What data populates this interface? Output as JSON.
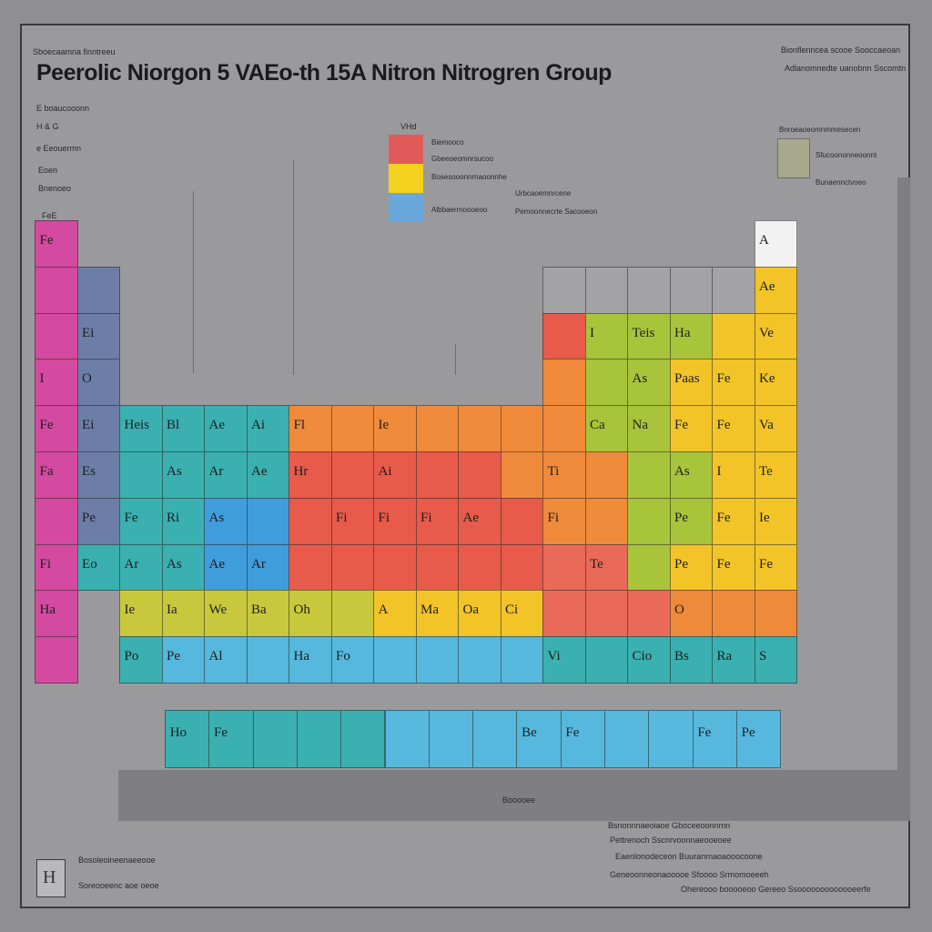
{
  "title": "Peerolic Niorgon 5 VAEo-th 15A Nitron Nitrogren Group",
  "subtitle": "Sboecaamna finntreeu",
  "top_right": [
    "Bionflenncea scooe Sooccaeoan",
    "Adlanomnedte uanobnn Sscomtn"
  ],
  "left_notes": [
    "E boaucooonn",
    "H &  G",
    "e Eeouermn",
    "Eoen",
    "Bnenoeo",
    "FeE"
  ],
  "legend": {
    "heading": "VHd",
    "items": [
      {
        "label": "Biemooco",
        "color": "#e05a5a"
      },
      {
        "label": "Gbeeoeomnrsucoo",
        "color": "#f2d21e"
      },
      {
        "label": "Bosesooonnrnaoonnhe",
        "color": "#6aa8dc"
      },
      {
        "label": "Albbaerrnoooeoo",
        "color": "#6aa8dc"
      }
    ],
    "extra": [
      "Urbcaoemnrcene",
      "Pemoonnecrte Sacooeon"
    ]
  },
  "right_legend": [
    "Bnroeaoeomnmmesecen",
    "Sfucoononneoonnt",
    "Bunaennctvoeo"
  ],
  "bottom_right_notes": [
    "Bsnonnnaeoiaoe  Gboceeoonnmn",
    "Pettrenoch  Sscnrvoonnaeooeoee",
    "Eaenlonodeceon  Buuranrnaoaooocoone",
    "Geneoonneonaooooe Sfoooo Srmomoeeeh",
    "Ohereooo booooeoo  Gereeo Ssooooooooooooeerfe"
  ],
  "footer": {
    "line1": "Bosoleoineenaeeooe",
    "line2": "Soreooeenc aoe oeoe"
  },
  "page_stamp": "Booooee",
  "colors": {
    "magenta": "#d44aa0",
    "slate": "#6c7ea8",
    "teal": "#3ab0b0",
    "blue": "#3f9ddc",
    "orange": "#ef8a3a",
    "red": "#e85a4a",
    "salmon": "#e96a58",
    "green": "#a8c43a",
    "yellow": "#f2c428",
    "lime": "#c9c83c",
    "cyan": "#55b8dc",
    "white": "#f2f2f2",
    "gray": "#a3a3a6"
  },
  "cells": [
    {
      "r": 0,
      "c": 0,
      "sym": "Fe",
      "color": "magenta"
    },
    {
      "r": 0,
      "c": 17,
      "sym": "A",
      "color": "white"
    },
    {
      "r": 1,
      "c": 0,
      "sym": "",
      "color": "magenta"
    },
    {
      "r": 1,
      "c": 1,
      "sym": "",
      "color": "slate"
    },
    {
      "r": 1,
      "c": 12,
      "sym": "",
      "color": "gray"
    },
    {
      "r": 1,
      "c": 13,
      "sym": "",
      "color": "gray"
    },
    {
      "r": 1,
      "c": 14,
      "sym": "",
      "color": "gray"
    },
    {
      "r": 1,
      "c": 15,
      "sym": "",
      "color": "gray"
    },
    {
      "r": 1,
      "c": 16,
      "sym": "",
      "color": "gray"
    },
    {
      "r": 1,
      "c": 17,
      "sym": "Ae",
      "color": "yellow"
    },
    {
      "r": 2,
      "c": 0,
      "sym": "",
      "color": "magenta"
    },
    {
      "r": 2,
      "c": 1,
      "sym": "Ei",
      "color": "slate"
    },
    {
      "r": 2,
      "c": 12,
      "sym": "",
      "color": "red"
    },
    {
      "r": 2,
      "c": 13,
      "sym": "I",
      "color": "green"
    },
    {
      "r": 2,
      "c": 14,
      "sym": "Teis",
      "color": "green"
    },
    {
      "r": 2,
      "c": 15,
      "sym": "Ha",
      "color": "green"
    },
    {
      "r": 2,
      "c": 16,
      "sym": "",
      "color": "yellow"
    },
    {
      "r": 2,
      "c": 17,
      "sym": "Ve",
      "color": "yellow"
    },
    {
      "r": 3,
      "c": 0,
      "sym": "I",
      "color": "magenta"
    },
    {
      "r": 3,
      "c": 1,
      "sym": "O",
      "color": "slate"
    },
    {
      "r": 3,
      "c": 12,
      "sym": "",
      "color": "orange"
    },
    {
      "r": 3,
      "c": 13,
      "sym": "",
      "color": "green"
    },
    {
      "r": 3,
      "c": 14,
      "sym": "As",
      "color": "green"
    },
    {
      "r": 3,
      "c": 15,
      "sym": "Paas",
      "color": "yellow"
    },
    {
      "r": 3,
      "c": 16,
      "sym": "Fe",
      "color": "yellow"
    },
    {
      "r": 3,
      "c": 17,
      "sym": "Ke",
      "color": "yellow"
    },
    {
      "r": 4,
      "c": 0,
      "sym": "Fe",
      "color": "magenta"
    },
    {
      "r": 4,
      "c": 1,
      "sym": "Ei",
      "color": "slate"
    },
    {
      "r": 4,
      "c": 2,
      "sym": "Heis",
      "color": "teal"
    },
    {
      "r": 4,
      "c": 3,
      "sym": "Bl",
      "color": "teal"
    },
    {
      "r": 4,
      "c": 4,
      "sym": "Ae",
      "color": "teal"
    },
    {
      "r": 4,
      "c": 5,
      "sym": "Ai",
      "color": "teal"
    },
    {
      "r": 4,
      "c": 6,
      "sym": "Fl",
      "color": "orange"
    },
    {
      "r": 4,
      "c": 7,
      "sym": "",
      "color": "orange"
    },
    {
      "r": 4,
      "c": 8,
      "sym": "Ie",
      "color": "orange"
    },
    {
      "r": 4,
      "c": 9,
      "sym": "",
      "color": "orange"
    },
    {
      "r": 4,
      "c": 10,
      "sym": "",
      "color": "orange"
    },
    {
      "r": 4,
      "c": 11,
      "sym": "",
      "color": "orange"
    },
    {
      "r": 4,
      "c": 12,
      "sym": "",
      "color": "orange"
    },
    {
      "r": 4,
      "c": 13,
      "sym": "Ca",
      "color": "green"
    },
    {
      "r": 4,
      "c": 14,
      "sym": "Na",
      "color": "green"
    },
    {
      "r": 4,
      "c": 15,
      "sym": "Fe",
      "color": "yellow"
    },
    {
      "r": 4,
      "c": 16,
      "sym": "Fe",
      "color": "yellow"
    },
    {
      "r": 4,
      "c": 17,
      "sym": "Va",
      "color": "yellow"
    },
    {
      "r": 5,
      "c": 0,
      "sym": "Fa",
      "color": "magenta"
    },
    {
      "r": 5,
      "c": 1,
      "sym": "Es",
      "color": "slate"
    },
    {
      "r": 5,
      "c": 2,
      "sym": "",
      "color": "teal"
    },
    {
      "r": 5,
      "c": 3,
      "sym": "As",
      "color": "teal"
    },
    {
      "r": 5,
      "c": 4,
      "sym": "Ar",
      "color": "teal"
    },
    {
      "r": 5,
      "c": 5,
      "sym": "Ae",
      "color": "teal"
    },
    {
      "r": 5,
      "c": 6,
      "sym": "Hr",
      "color": "red"
    },
    {
      "r": 5,
      "c": 7,
      "sym": "",
      "color": "red"
    },
    {
      "r": 5,
      "c": 8,
      "sym": "Ai",
      "color": "red"
    },
    {
      "r": 5,
      "c": 9,
      "sym": "",
      "color": "red"
    },
    {
      "r": 5,
      "c": 10,
      "sym": "",
      "color": "red"
    },
    {
      "r": 5,
      "c": 11,
      "sym": "",
      "color": "orange"
    },
    {
      "r": 5,
      "c": 12,
      "sym": "Ti",
      "color": "orange"
    },
    {
      "r": 5,
      "c": 13,
      "sym": "",
      "color": "orange"
    },
    {
      "r": 5,
      "c": 14,
      "sym": "",
      "color": "green"
    },
    {
      "r": 5,
      "c": 15,
      "sym": "As",
      "color": "green"
    },
    {
      "r": 5,
      "c": 16,
      "sym": "I",
      "color": "yellow"
    },
    {
      "r": 5,
      "c": 17,
      "sym": "Te",
      "color": "yellow"
    },
    {
      "r": 6,
      "c": 0,
      "sym": "",
      "color": "magenta"
    },
    {
      "r": 6,
      "c": 1,
      "sym": "Pe",
      "color": "slate"
    },
    {
      "r": 6,
      "c": 2,
      "sym": "Fe",
      "color": "teal"
    },
    {
      "r": 6,
      "c": 3,
      "sym": "Ri",
      "color": "teal"
    },
    {
      "r": 6,
      "c": 4,
      "sym": "As",
      "color": "blue"
    },
    {
      "r": 6,
      "c": 5,
      "sym": "",
      "color": "blue"
    },
    {
      "r": 6,
      "c": 6,
      "sym": "",
      "color": "red"
    },
    {
      "r": 6,
      "c": 7,
      "sym": "Fi",
      "color": "red"
    },
    {
      "r": 6,
      "c": 8,
      "sym": "Fi",
      "color": "red"
    },
    {
      "r": 6,
      "c": 9,
      "sym": "Fi",
      "color": "red"
    },
    {
      "r": 6,
      "c": 10,
      "sym": "Ae",
      "color": "red"
    },
    {
      "r": 6,
      "c": 11,
      "sym": "",
      "color": "red"
    },
    {
      "r": 6,
      "c": 12,
      "sym": "Fi",
      "color": "orange"
    },
    {
      "r": 6,
      "c": 13,
      "sym": "",
      "color": "orange"
    },
    {
      "r": 6,
      "c": 14,
      "sym": "",
      "color": "green"
    },
    {
      "r": 6,
      "c": 15,
      "sym": "Pe",
      "color": "green"
    },
    {
      "r": 6,
      "c": 16,
      "sym": "Fe",
      "color": "yellow"
    },
    {
      "r": 6,
      "c": 17,
      "sym": "Ie",
      "color": "yellow"
    },
    {
      "r": 7,
      "c": 0,
      "sym": "Fi",
      "color": "magenta"
    },
    {
      "r": 7,
      "c": 1,
      "sym": "Eo",
      "color": "teal"
    },
    {
      "r": 7,
      "c": 2,
      "sym": "Ar",
      "color": "teal"
    },
    {
      "r": 7,
      "c": 3,
      "sym": "As",
      "color": "teal"
    },
    {
      "r": 7,
      "c": 4,
      "sym": "Ae",
      "color": "blue"
    },
    {
      "r": 7,
      "c": 5,
      "sym": "Ar",
      "color": "blue"
    },
    {
      "r": 7,
      "c": 6,
      "sym": "",
      "color": "red"
    },
    {
      "r": 7,
      "c": 7,
      "sym": "",
      "color": "red"
    },
    {
      "r": 7,
      "c": 8,
      "sym": "",
      "color": "red"
    },
    {
      "r": 7,
      "c": 9,
      "sym": "",
      "color": "red"
    },
    {
      "r": 7,
      "c": 10,
      "sym": "",
      "color": "red"
    },
    {
      "r": 7,
      "c": 11,
      "sym": "",
      "color": "red"
    },
    {
      "r": 7,
      "c": 12,
      "sym": "",
      "color": "salmon"
    },
    {
      "r": 7,
      "c": 13,
      "sym": "Te",
      "color": "salmon"
    },
    {
      "r": 7,
      "c": 14,
      "sym": "",
      "color": "green"
    },
    {
      "r": 7,
      "c": 15,
      "sym": "Pe",
      "color": "yellow"
    },
    {
      "r": 7,
      "c": 16,
      "sym": "Fe",
      "color": "yellow"
    },
    {
      "r": 7,
      "c": 17,
      "sym": "Fe",
      "color": "yellow"
    },
    {
      "r": 8,
      "c": 0,
      "sym": "Ha",
      "color": "magenta"
    },
    {
      "r": 8,
      "c": 2,
      "sym": "Ie",
      "color": "lime"
    },
    {
      "r": 8,
      "c": 3,
      "sym": "Ia",
      "color": "lime"
    },
    {
      "r": 8,
      "c": 4,
      "sym": "We",
      "color": "lime"
    },
    {
      "r": 8,
      "c": 5,
      "sym": "Ba",
      "color": "lime"
    },
    {
      "r": 8,
      "c": 6,
      "sym": "Oh",
      "color": "lime"
    },
    {
      "r": 8,
      "c": 7,
      "sym": "",
      "color": "lime"
    },
    {
      "r": 8,
      "c": 8,
      "sym": "A",
      "color": "yellow"
    },
    {
      "r": 8,
      "c": 9,
      "sym": "Ma",
      "color": "yellow"
    },
    {
      "r": 8,
      "c": 10,
      "sym": "Oa",
      "color": "yellow"
    },
    {
      "r": 8,
      "c": 11,
      "sym": "Ci",
      "color": "yellow"
    },
    {
      "r": 8,
      "c": 12,
      "sym": "",
      "color": "salmon"
    },
    {
      "r": 8,
      "c": 13,
      "sym": "",
      "color": "salmon"
    },
    {
      "r": 8,
      "c": 14,
      "sym": "",
      "color": "salmon"
    },
    {
      "r": 8,
      "c": 15,
      "sym": "O",
      "color": "orange"
    },
    {
      "r": 8,
      "c": 16,
      "sym": "",
      "color": "orange"
    },
    {
      "r": 8,
      "c": 17,
      "sym": "",
      "color": "orange"
    },
    {
      "r": 9,
      "c": 0,
      "sym": "",
      "color": "magenta"
    },
    {
      "r": 9,
      "c": 2,
      "sym": "Po",
      "color": "teal"
    },
    {
      "r": 9,
      "c": 3,
      "sym": "Pe",
      "color": "cyan"
    },
    {
      "r": 9,
      "c": 4,
      "sym": "Al",
      "color": "cyan"
    },
    {
      "r": 9,
      "c": 5,
      "sym": "",
      "color": "cyan"
    },
    {
      "r": 9,
      "c": 6,
      "sym": "Ha",
      "color": "cyan"
    },
    {
      "r": 9,
      "c": 7,
      "sym": "Fo",
      "color": "cyan"
    },
    {
      "r": 9,
      "c": 8,
      "sym": "",
      "color": "cyan"
    },
    {
      "r": 9,
      "c": 9,
      "sym": "",
      "color": "cyan"
    },
    {
      "r": 9,
      "c": 10,
      "sym": "",
      "color": "cyan"
    },
    {
      "r": 9,
      "c": 11,
      "sym": "",
      "color": "cyan"
    },
    {
      "r": 9,
      "c": 12,
      "sym": "Vi",
      "color": "teal"
    },
    {
      "r": 9,
      "c": 13,
      "sym": "",
      "color": "teal"
    },
    {
      "r": 9,
      "c": 14,
      "sym": "Cio",
      "color": "teal"
    },
    {
      "r": 9,
      "c": 15,
      "sym": "Bs",
      "color": "teal"
    },
    {
      "r": 9,
      "c": 16,
      "sym": "Ra",
      "color": "teal"
    },
    {
      "r": 9,
      "c": 17,
      "sym": "S",
      "color": "teal"
    }
  ],
  "f_block": [
    {
      "sym": "Ho",
      "color": "teal"
    },
    {
      "sym": "Fe",
      "color": "teal"
    },
    {
      "sym": "",
      "color": "teal"
    },
    {
      "sym": "",
      "color": "teal"
    },
    {
      "sym": "",
      "color": "teal"
    },
    {
      "sym": "",
      "color": "cyan"
    },
    {
      "sym": "",
      "color": "cyan"
    },
    {
      "sym": "",
      "color": "cyan"
    },
    {
      "sym": "Be",
      "color": "cyan"
    },
    {
      "sym": "Fe",
      "color": "cyan"
    },
    {
      "sym": "",
      "color": "cyan"
    },
    {
      "sym": "",
      "color": "cyan"
    },
    {
      "sym": "Fe",
      "color": "cyan"
    },
    {
      "sym": "Pe",
      "color": "cyan"
    }
  ]
}
